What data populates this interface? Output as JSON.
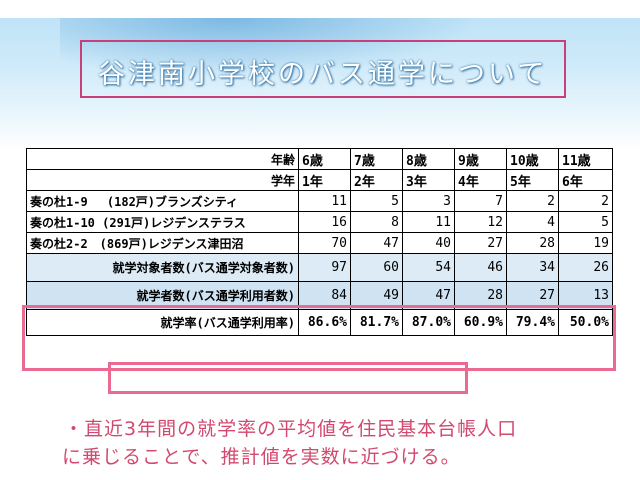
{
  "title": "谷津南小学校のバス通学について",
  "table": {
    "age_header": "年齢",
    "grade_header": "学年",
    "columns": [
      {
        "age": "6歳",
        "grade": "1年"
      },
      {
        "age": "7歳",
        "grade": "2年"
      },
      {
        "age": "8歳",
        "grade": "3年"
      },
      {
        "age": "9歳",
        "grade": "4年"
      },
      {
        "age": "10歳",
        "grade": "5年"
      },
      {
        "age": "11歳",
        "grade": "6年"
      }
    ],
    "rows": [
      {
        "label": "奏の杜1-9　 (182戸)ブランズシティ",
        "values": [
          "11",
          "5",
          "3",
          "7",
          "2",
          "2"
        ]
      },
      {
        "label": "奏の杜1-10 (291戸)レジデンステラス",
        "values": [
          "16",
          "8",
          "11",
          "12",
          "4",
          "5"
        ]
      },
      {
        "label": "奏の杜2-2　(869戸)レジデンス津田沼",
        "values": [
          "70",
          "47",
          "40",
          "27",
          "28",
          "19"
        ]
      },
      {
        "label": "就学対象者数(バス通学対象者数)",
        "values": [
          "97",
          "60",
          "54",
          "46",
          "34",
          "26"
        ]
      },
      {
        "label": "就学者数(バス通学利用者数)",
        "values": [
          "84",
          "49",
          "47",
          "28",
          "27",
          "13"
        ]
      },
      {
        "label": "就学率(バス通学利用率)",
        "values": [
          "86.6%",
          "81.7%",
          "87.0%",
          "60.9%",
          "79.4%",
          "50.0%"
        ]
      }
    ]
  },
  "note_line1": "・直近3年間の就学率の平均値を住民基本台帳人口",
  "note_line2": "に乗じることで、推計値を実数に近づける。",
  "colors": {
    "accent_pink": "#ea6a92",
    "note_text": "#d2496f",
    "banner_blue": "#bfe3f7"
  }
}
